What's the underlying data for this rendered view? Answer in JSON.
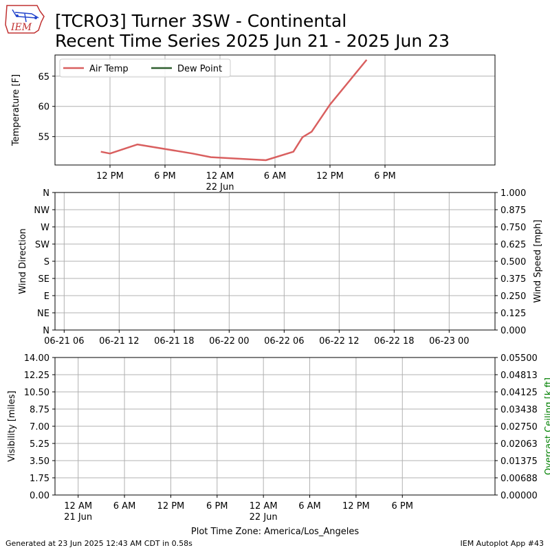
{
  "title": {
    "line1": "[TCRO3] Turner 3SW - Continental",
    "line2": "Recent Time Series 2025 Jun 21 - 2025 Jun 23"
  },
  "logo": {
    "text": "IEM"
  },
  "footer": {
    "left": "Generated at 23 Jun 2025 12:43 AM CDT in 0.58s",
    "right": "IEM Autoplot App #43"
  },
  "colors": {
    "air_temp": "#d95f5f",
    "dew_point": "#2e5e2e",
    "ceiling_label": "#008000",
    "grid": "#b0b0b0"
  },
  "chart_data": [
    {
      "type": "line",
      "ylabel": "Temperature [F]",
      "legend": {
        "placement": "top-left",
        "entries": [
          "Air Temp",
          "Dew Point"
        ]
      },
      "grid": true,
      "x_range": [
        "2025-06-21 06:00",
        "2025-06-23 06:00"
      ],
      "ylim": [
        50.3,
        68.5
      ],
      "yticks": [
        55,
        60,
        65
      ],
      "xticks": [
        {
          "t": "2025-06-21 12:00",
          "label": "12 PM",
          "sub": ""
        },
        {
          "t": "2025-06-21 18:00",
          "label": "6 PM",
          "sub": ""
        },
        {
          "t": "2025-06-22 00:00",
          "label": "12 AM",
          "sub": "22 Jun"
        },
        {
          "t": "2025-06-22 06:00",
          "label": "6 AM",
          "sub": ""
        },
        {
          "t": "2025-06-22 12:00",
          "label": "12 PM",
          "sub": ""
        },
        {
          "t": "2025-06-22 18:00",
          "label": "6 PM",
          "sub": ""
        }
      ],
      "series": [
        {
          "name": "Air Temp",
          "x": [
            "2025-06-21 11:00",
            "2025-06-21 12:00",
            "2025-06-21 15:00",
            "2025-06-21 21:00",
            "2025-06-21 23:00",
            "2025-06-22 05:00",
            "2025-06-22 08:00",
            "2025-06-22 09:00",
            "2025-06-22 10:00",
            "2025-06-22 12:00",
            "2025-06-22 16:00"
          ],
          "y": [
            52.5,
            52.2,
            53.7,
            52.2,
            51.6,
            51.1,
            52.5,
            54.9,
            55.8,
            60.3,
            67.7
          ]
        },
        {
          "name": "Dew Point",
          "x": [],
          "y": []
        }
      ]
    },
    {
      "type": "scatter",
      "ylabel": "Wind Direction",
      "y2label": "Wind Speed [mph]",
      "grid": true,
      "x_range": [
        "2025-06-21 05:00",
        "2025-06-23 05:00"
      ],
      "yticks": [
        "N",
        "NE",
        "E",
        "SE",
        "S",
        "SW",
        "W",
        "NW",
        "N"
      ],
      "y2ticks": [
        "0.000",
        "0.125",
        "0.250",
        "0.375",
        "0.500",
        "0.625",
        "0.750",
        "0.875",
        "1.000"
      ],
      "xticks": [
        {
          "t": "2025-06-21 06:00",
          "label": "06-21 06"
        },
        {
          "t": "2025-06-21 12:00",
          "label": "06-21 12"
        },
        {
          "t": "2025-06-21 18:00",
          "label": "06-21 18"
        },
        {
          "t": "2025-06-22 00:00",
          "label": "06-22 00"
        },
        {
          "t": "2025-06-22 06:00",
          "label": "06-22 06"
        },
        {
          "t": "2025-06-22 12:00",
          "label": "06-22 12"
        },
        {
          "t": "2025-06-22 18:00",
          "label": "06-22 18"
        },
        {
          "t": "2025-06-23 00:00",
          "label": "06-23 00"
        }
      ],
      "series": []
    },
    {
      "type": "line",
      "ylabel": "Visibility [miles]",
      "y2label": "Overcast Ceiling [k ft]",
      "xlabel": "Plot Time Zone: America/Los_Angeles",
      "grid": true,
      "x_range": [
        "2025-06-20 21:00",
        "2025-06-23 06:00"
      ],
      "ylim": [
        0,
        14
      ],
      "yticks": [
        "0.00",
        "1.75",
        "3.50",
        "5.25",
        "7.00",
        "8.75",
        "10.50",
        "12.25",
        "14.00"
      ],
      "y2lim": [
        0,
        0.055
      ],
      "y2ticks": [
        "0.00000",
        "0.00688",
        "0.01375",
        "0.02063",
        "0.02750",
        "0.03438",
        "0.04125",
        "0.04813",
        "0.05500"
      ],
      "xticks": [
        {
          "t": "2025-06-21 00:00",
          "label": "12 AM",
          "sub": "21 Jun"
        },
        {
          "t": "2025-06-21 06:00",
          "label": "6 AM",
          "sub": ""
        },
        {
          "t": "2025-06-21 12:00",
          "label": "12 PM",
          "sub": ""
        },
        {
          "t": "2025-06-21 18:00",
          "label": "6 PM",
          "sub": ""
        },
        {
          "t": "2025-06-22 00:00",
          "label": "12 AM",
          "sub": "22 Jun"
        },
        {
          "t": "2025-06-22 06:00",
          "label": "6 AM",
          "sub": ""
        },
        {
          "t": "2025-06-22 12:00",
          "label": "12 PM",
          "sub": ""
        },
        {
          "t": "2025-06-22 18:00",
          "label": "6 PM",
          "sub": ""
        }
      ],
      "series": []
    }
  ]
}
